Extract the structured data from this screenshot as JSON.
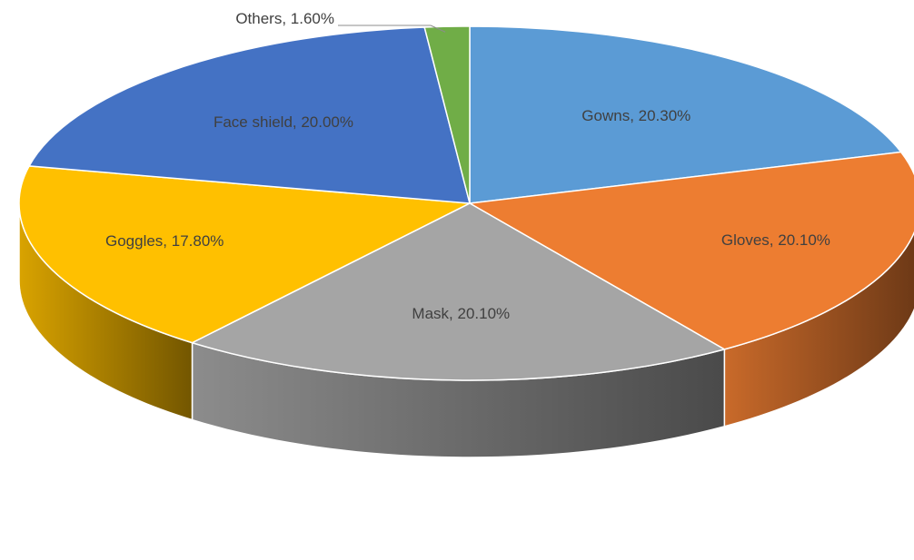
{
  "chart_data": {
    "type": "pie",
    "style": "3d",
    "title": "",
    "legend": "none",
    "slices": [
      {
        "name": "Gowns",
        "value": 20.3,
        "label": "Gowns, 20.30%",
        "color": "#5b9bd5"
      },
      {
        "name": "Gloves",
        "value": 20.1,
        "label": "Gloves, 20.10%",
        "color": "#ed7d31"
      },
      {
        "name": "Mask",
        "value": 20.1,
        "label": "Mask, 20.10%",
        "color": "#a5a5a5"
      },
      {
        "name": "Goggles",
        "value": 17.8,
        "label": "Goggles, 17.80%",
        "color": "#ffc000"
      },
      {
        "name": "Face shield",
        "value": 20.0,
        "label": "Face shield, 20.00%",
        "color": "#4472c4"
      },
      {
        "name": "Others",
        "value": 1.6,
        "label": "Others, 1.60%",
        "color": "#70ad47"
      }
    ]
  }
}
